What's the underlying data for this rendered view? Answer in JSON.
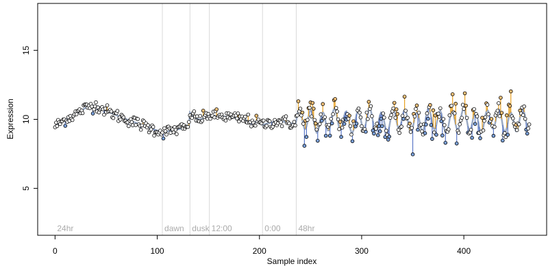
{
  "chart_data": {
    "type": "scatter",
    "xlabel": "Sample index",
    "ylabel": "Expression",
    "xlim": [
      -17,
      481
    ],
    "ylim": [
      1.6,
      18.4
    ],
    "x_ticks": [
      0,
      100,
      200,
      300,
      400
    ],
    "y_ticks": [
      5,
      10,
      15
    ],
    "grid": false,
    "colors": {
      "points_fill_default": "#ffffff",
      "points_fill_orange": "#f2c078",
      "points_fill_blue": "#7a9fd8",
      "points_stroke": "#000000",
      "fit_line": "#9aaac4",
      "residual_up": "#e8a020",
      "residual_down": "#5a78c8",
      "vline": "#d9d9d9",
      "annotation_text": "#aaaaaa",
      "axis": "#000000"
    },
    "segments": [
      {
        "label": "24hr",
        "x": 0
      },
      {
        "label": "dawn",
        "x": 105
      },
      {
        "label": "dusk",
        "x": 132
      },
      {
        "label": "12:00",
        "x": 151
      },
      {
        "label": "0:00",
        "x": 203
      },
      {
        "label": "48hr",
        "x": 236
      }
    ],
    "boundaries": [
      105,
      132,
      151,
      203,
      236
    ],
    "series": [
      {
        "n": 465,
        "points_desc": "Expression ~9.8-11.2 over samples 0-60, dipping to ~9.0 around 100-130, rising to ~10.5 at 132-200, ~9.5 near 200-236, then oscillating between ~8.6 and ~12.2 from 236 to 465."
      }
    ]
  }
}
